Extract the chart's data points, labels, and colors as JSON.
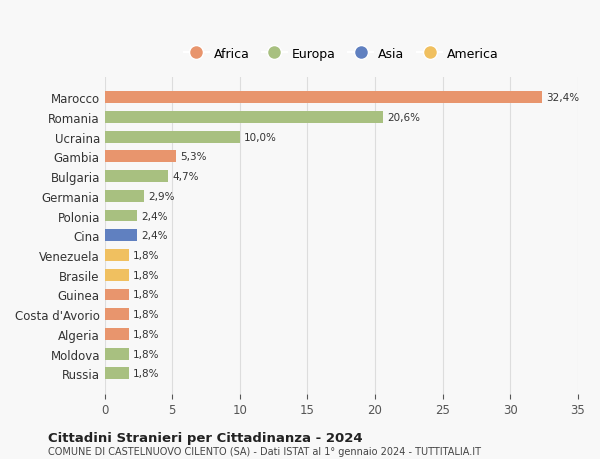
{
  "countries": [
    "Russia",
    "Moldova",
    "Algeria",
    "Costa d'Avorio",
    "Guinea",
    "Brasile",
    "Venezuela",
    "Cina",
    "Polonia",
    "Germania",
    "Bulgaria",
    "Gambia",
    "Ucraina",
    "Romania",
    "Marocco"
  ],
  "values": [
    1.8,
    1.8,
    1.8,
    1.8,
    1.8,
    1.8,
    1.8,
    2.4,
    2.4,
    2.9,
    4.7,
    5.3,
    10.0,
    20.6,
    32.4
  ],
  "labels": [
    "1,8%",
    "1,8%",
    "1,8%",
    "1,8%",
    "1,8%",
    "1,8%",
    "1,8%",
    "2,4%",
    "2,4%",
    "2,9%",
    "4,7%",
    "5,3%",
    "10,0%",
    "20,6%",
    "32,4%"
  ],
  "colors": [
    "#a8c080",
    "#a8c080",
    "#e8956d",
    "#e8956d",
    "#e8956d",
    "#f0c060",
    "#f0c060",
    "#6080c0",
    "#a8c080",
    "#a8c080",
    "#a8c080",
    "#e8956d",
    "#a8c080",
    "#a8c080",
    "#e8956d"
  ],
  "continent": [
    "Europa",
    "Europa",
    "Africa",
    "Africa",
    "Africa",
    "America",
    "America",
    "Asia",
    "Europa",
    "Europa",
    "Europa",
    "Africa",
    "Europa",
    "Europa",
    "Africa"
  ],
  "legend_labels": [
    "Africa",
    "Europa",
    "Asia",
    "America"
  ],
  "legend_colors": [
    "#e8956d",
    "#a8c080",
    "#6080c0",
    "#f0c060"
  ],
  "title1": "Cittadini Stranieri per Cittadinanza - 2024",
  "title2": "COMUNE DI CASTELNUOVO CILENTO (SA) - Dati ISTAT al 1° gennaio 2024 - TUTTITALIA.IT",
  "xlim": [
    0,
    35
  ],
  "xticks": [
    0,
    5,
    10,
    15,
    20,
    25,
    30,
    35
  ],
  "background_color": "#f8f8f8",
  "grid_color": "#dddddd"
}
